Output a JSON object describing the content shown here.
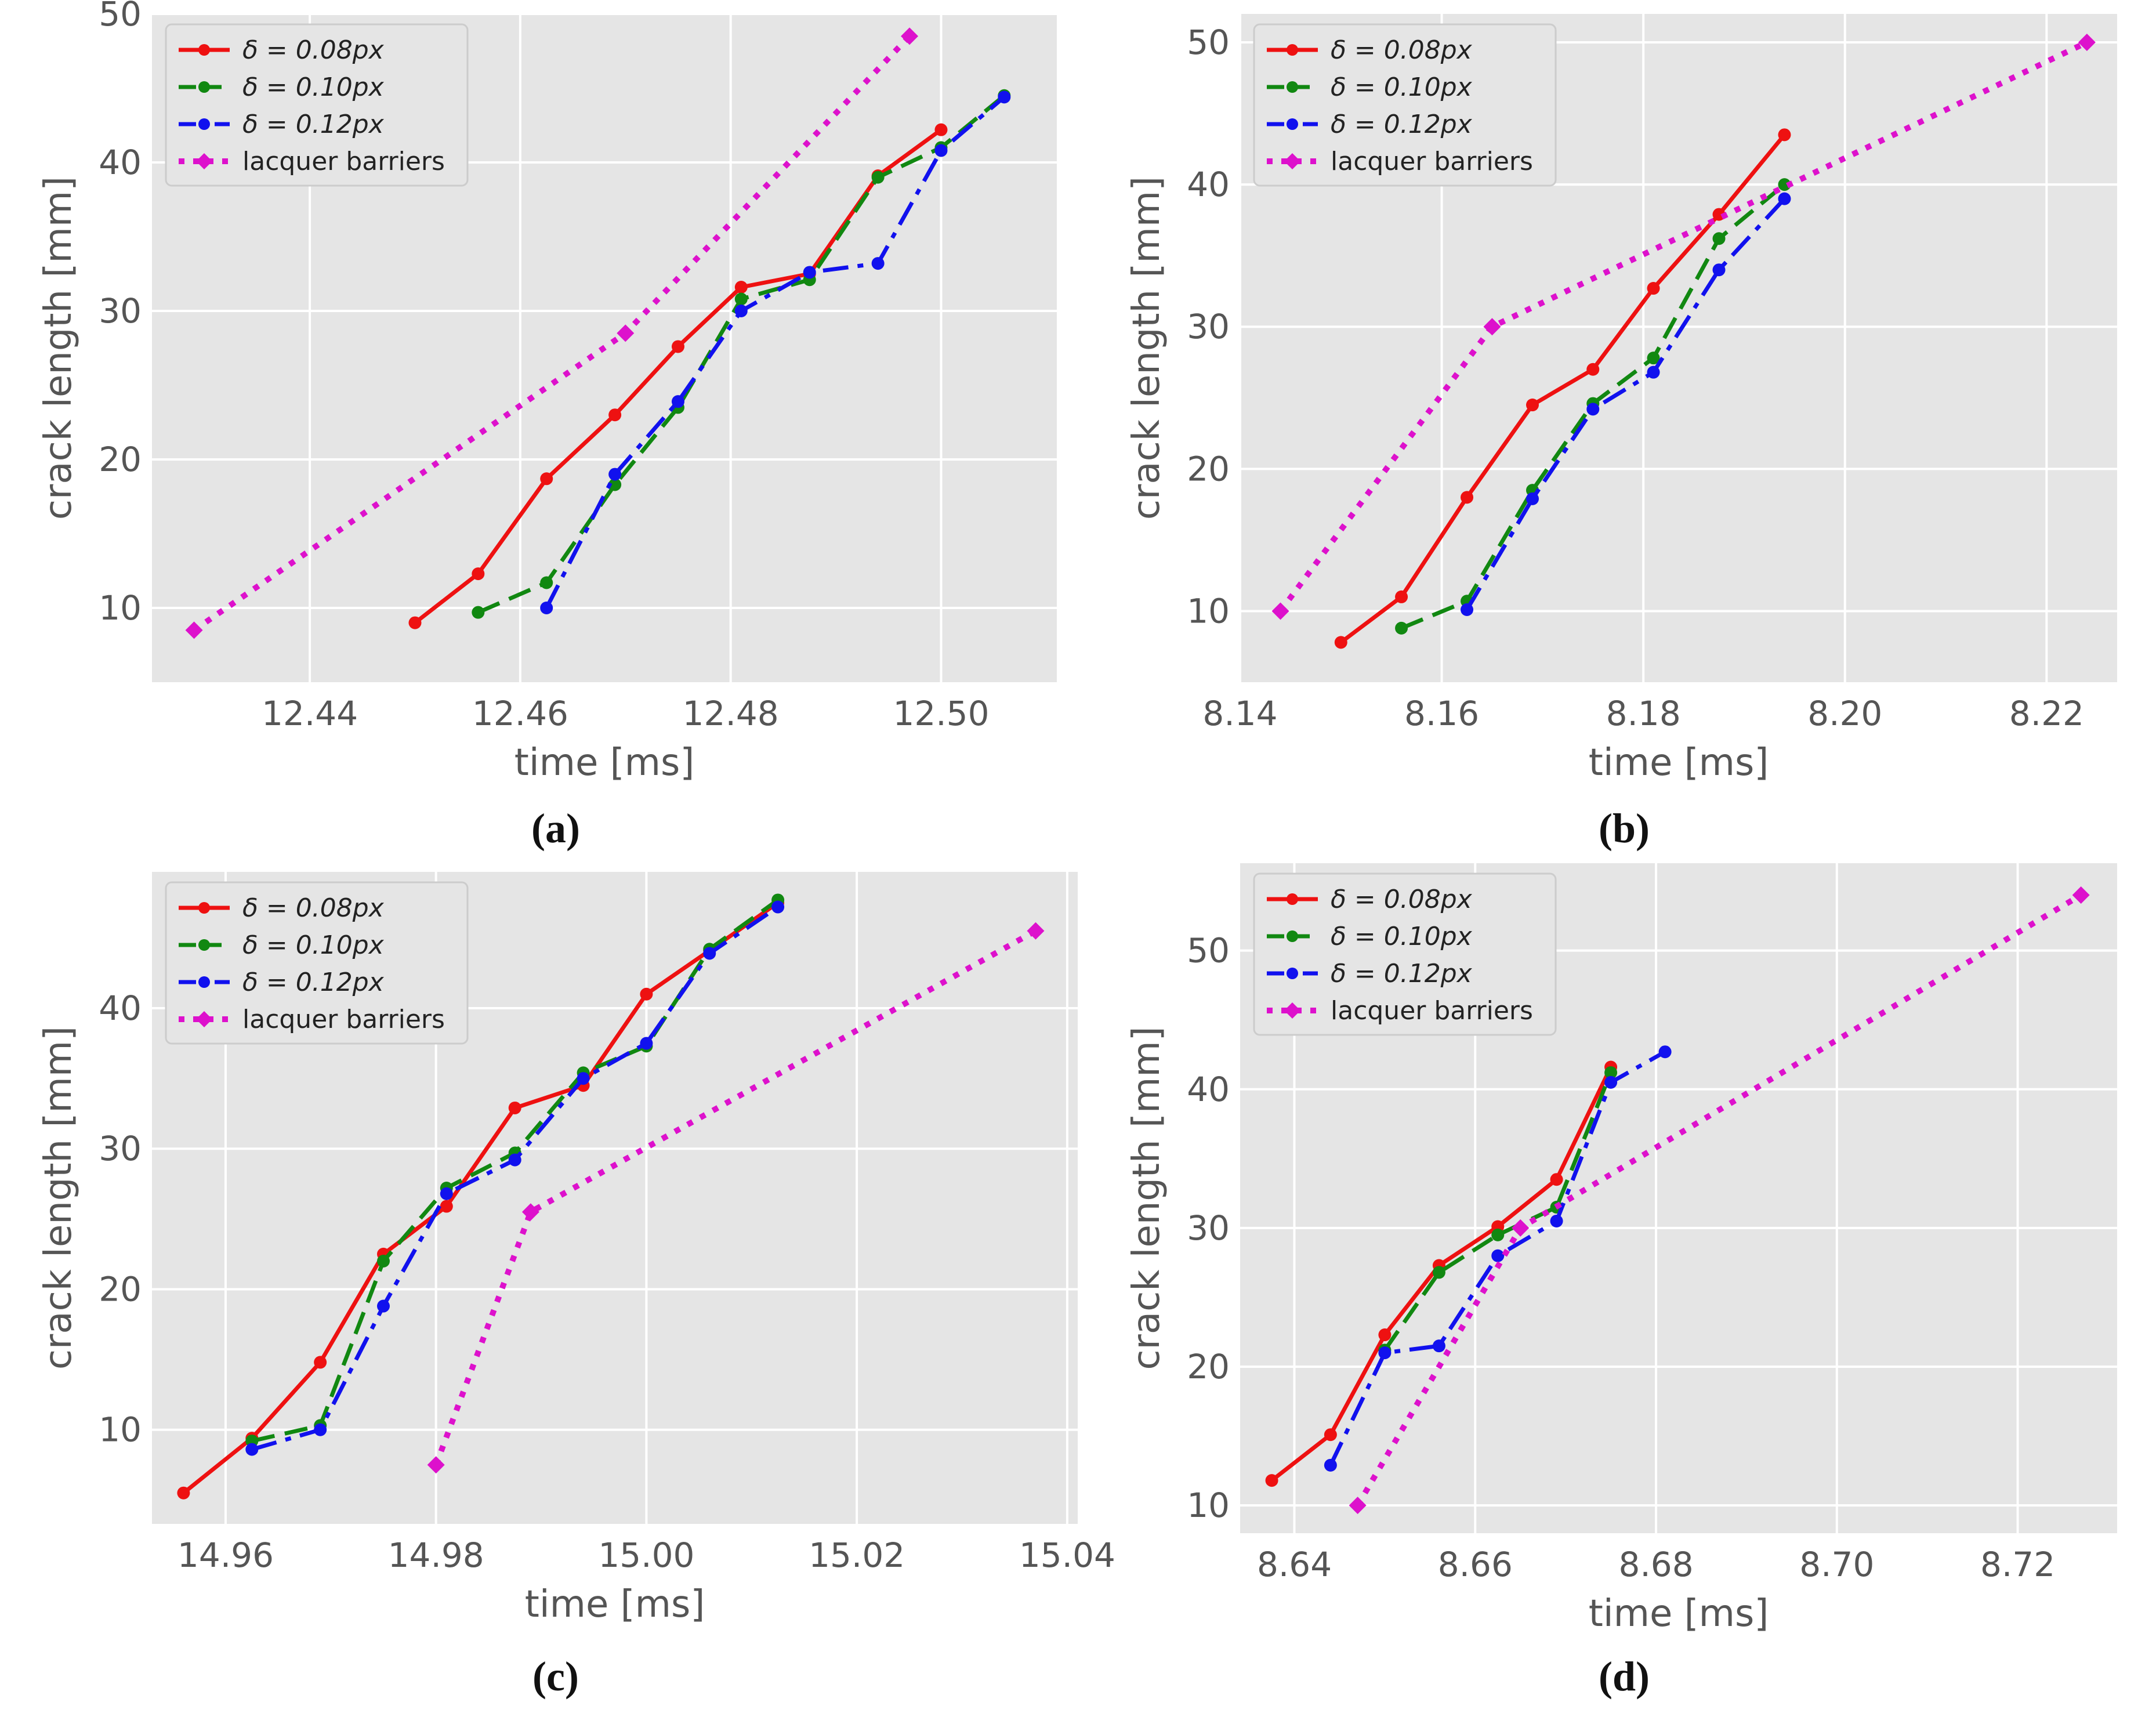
{
  "figure": {
    "colors": {
      "delta_008": "#ee1111",
      "delta_010": "#118811",
      "delta_012": "#1111ee",
      "lacquer": "#dd11cc",
      "plot_bg": "#e5e5e5",
      "grid": "#ffffff",
      "text": "#555555"
    }
  },
  "chart_data": [
    {
      "panel": "a",
      "type": "line",
      "caption": "(a)",
      "xlabel": "time [ms]",
      "ylabel": "crack length [mm]",
      "xlim": [
        12.425,
        12.511
      ],
      "ylim": [
        5.0,
        50.0
      ],
      "xticks": [
        12.44,
        12.46,
        12.48,
        12.5
      ],
      "xtick_labels": [
        "12.44",
        "12.46",
        "12.48",
        "12.50"
      ],
      "yticks": [
        10,
        20,
        30,
        40,
        50
      ],
      "ytick_labels": [
        "10",
        "20",
        "30",
        "40",
        "50"
      ],
      "grid": true,
      "legend_position": "top-left",
      "series": [
        {
          "name": "δ = 0.08px",
          "style": "solid",
          "x": [
            12.45,
            12.456,
            12.4625,
            12.469,
            12.475,
            12.481,
            12.4875,
            12.494,
            12.5
          ],
          "y": [
            9.0,
            12.3,
            18.7,
            23.0,
            27.6,
            31.6,
            32.5,
            39.1,
            42.2
          ]
        },
        {
          "name": "δ = 0.10px",
          "style": "dashed",
          "x": [
            12.456,
            12.4625,
            12.469,
            12.475,
            12.481,
            12.4875,
            12.494,
            12.5,
            12.506
          ],
          "y": [
            9.7,
            11.7,
            18.3,
            23.5,
            30.8,
            32.1,
            39.0,
            41.0,
            44.5
          ]
        },
        {
          "name": "δ = 0.12px",
          "style": "dashdot",
          "x": [
            12.4625,
            12.469,
            12.475,
            12.481,
            12.4875,
            12.494,
            12.5,
            12.506
          ],
          "y": [
            10.0,
            19.0,
            23.9,
            30.0,
            32.6,
            33.2,
            40.8,
            44.4
          ]
        },
        {
          "name": "lacquer barriers",
          "style": "dotted",
          "x": [
            12.429,
            12.47,
            12.497
          ],
          "y": [
            8.5,
            28.5,
            48.5
          ]
        }
      ]
    },
    {
      "panel": "b",
      "type": "line",
      "caption": "(b)",
      "xlabel": "time [ms]",
      "ylabel": "crack length [mm]",
      "xlim": [
        8.14,
        8.227
      ],
      "ylim": [
        5.0,
        52.0
      ],
      "xticks": [
        8.14,
        8.16,
        8.18,
        8.2,
        8.22
      ],
      "xtick_labels": [
        "8.14",
        "8.16",
        "8.18",
        "8.20",
        "8.22"
      ],
      "yticks": [
        10,
        20,
        30,
        40,
        50
      ],
      "ytick_labels": [
        "10",
        "20",
        "30",
        "40",
        "50"
      ],
      "grid": true,
      "legend_position": "top-left",
      "series": [
        {
          "name": "δ = 0.08px",
          "style": "solid",
          "x": [
            8.15,
            8.156,
            8.1625,
            8.169,
            8.175,
            8.181,
            8.1875,
            8.194
          ],
          "y": [
            7.8,
            11.0,
            18.0,
            24.5,
            27.0,
            32.7,
            37.9,
            43.5
          ]
        },
        {
          "name": "δ = 0.10px",
          "style": "dashed",
          "x": [
            8.156,
            8.1625,
            8.169,
            8.175,
            8.181,
            8.1875,
            8.194
          ],
          "y": [
            8.8,
            10.7,
            18.5,
            24.6,
            27.8,
            36.2,
            40.0
          ]
        },
        {
          "name": "δ = 0.12px",
          "style": "dashdot",
          "x": [
            8.1625,
            8.169,
            8.175,
            8.181,
            8.1875,
            8.194
          ],
          "y": [
            10.1,
            17.9,
            24.2,
            26.8,
            34.0,
            39.0
          ]
        },
        {
          "name": "lacquer barriers",
          "style": "dotted",
          "x": [
            8.144,
            8.165,
            8.224
          ],
          "y": [
            10.0,
            30.0,
            50.0
          ]
        }
      ]
    },
    {
      "panel": "c",
      "type": "line",
      "caption": "(c)",
      "xlabel": "time [ms]",
      "ylabel": "crack length [mm]",
      "xlim": [
        14.953,
        15.041
      ],
      "ylim": [
        3.3,
        49.7
      ],
      "xticks": [
        14.96,
        14.98,
        15.0,
        15.02,
        15.04
      ],
      "xtick_labels": [
        "14.96",
        "14.98",
        "15.00",
        "15.02",
        "15.04"
      ],
      "yticks": [
        10,
        20,
        30,
        40
      ],
      "ytick_labels": [
        "10",
        "20",
        "30",
        "40"
      ],
      "grid": true,
      "legend_position": "top-left",
      "series": [
        {
          "name": "δ = 0.08px",
          "style": "solid",
          "x": [
            14.956,
            14.9625,
            14.969,
            14.975,
            14.981,
            14.9875,
            14.994,
            15.0,
            15.006,
            15.0125
          ],
          "y": [
            5.5,
            9.4,
            14.8,
            22.5,
            25.9,
            32.9,
            34.5,
            41.0,
            44.1,
            47.5
          ]
        },
        {
          "name": "δ = 0.10px",
          "style": "dashed",
          "x": [
            14.9625,
            14.969,
            14.975,
            14.981,
            14.9875,
            14.994,
            15.0,
            15.006,
            15.0125
          ],
          "y": [
            9.2,
            10.3,
            22.0,
            27.2,
            29.7,
            35.4,
            37.3,
            44.2,
            47.7
          ]
        },
        {
          "name": "δ = 0.12px",
          "style": "dashdot",
          "x": [
            14.9625,
            14.969,
            14.975,
            14.981,
            14.9875,
            14.994,
            15.0,
            15.006,
            15.0125
          ],
          "y": [
            8.6,
            10.0,
            18.8,
            26.8,
            29.2,
            35.0,
            37.5,
            43.9,
            47.2
          ]
        },
        {
          "name": "lacquer barriers",
          "style": "dotted",
          "x": [
            14.98,
            14.989,
            15.037
          ],
          "y": [
            7.5,
            25.5,
            45.5
          ]
        }
      ]
    },
    {
      "panel": "d",
      "type": "line",
      "caption": "(d)",
      "xlabel": "time [ms]",
      "ylabel": "crack length [mm]",
      "xlim": [
        8.634,
        8.731
      ],
      "ylim": [
        8.0,
        56.3
      ],
      "xticks": [
        8.64,
        8.66,
        8.68,
        8.7,
        8.72
      ],
      "xtick_labels": [
        "8.64",
        "8.66",
        "8.68",
        "8.70",
        "8.72"
      ],
      "yticks": [
        10,
        20,
        30,
        40,
        50
      ],
      "ytick_labels": [
        "10",
        "20",
        "30",
        "40",
        "50"
      ],
      "grid": true,
      "legend_position": "top-left",
      "series": [
        {
          "name": "δ = 0.08px",
          "style": "solid",
          "x": [
            8.6375,
            8.644,
            8.65,
            8.656,
            8.6625,
            8.669,
            8.675
          ],
          "y": [
            11.8,
            15.1,
            22.3,
            27.3,
            30.1,
            33.5,
            41.6
          ]
        },
        {
          "name": "δ = 0.10px",
          "style": "dashed",
          "x": [
            8.65,
            8.656,
            8.6625,
            8.669,
            8.675
          ],
          "y": [
            21.2,
            26.8,
            29.5,
            31.5,
            41.2
          ]
        },
        {
          "name": "δ = 0.12px",
          "style": "dashdot",
          "x": [
            8.644,
            8.65,
            8.656,
            8.6625,
            8.669,
            8.675,
            8.681
          ],
          "y": [
            12.9,
            21.0,
            21.5,
            28.0,
            30.5,
            40.5,
            42.7
          ]
        },
        {
          "name": "lacquer barriers",
          "style": "dotted",
          "x": [
            8.647,
            8.665,
            8.727
          ],
          "y": [
            10.0,
            30.0,
            54.0
          ]
        }
      ]
    }
  ]
}
